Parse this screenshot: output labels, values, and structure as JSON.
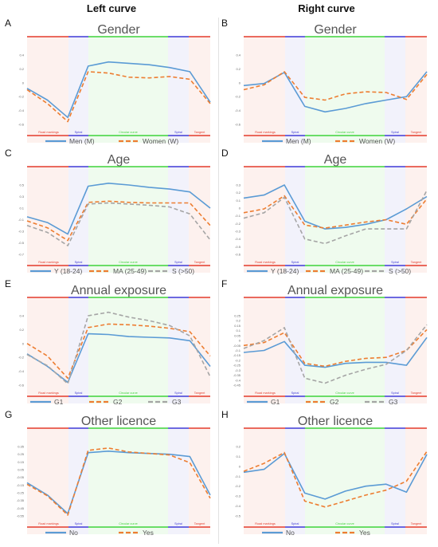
{
  "column_headers": {
    "left": "Left curve",
    "right": "Right curve"
  },
  "region_colors": {
    "road": "#e33b2b",
    "spiral": "#3f3ad6",
    "circular": "#3fd33a",
    "tangent": "#e33b2b"
  },
  "bg_colors": {
    "road": "#fdf1ee",
    "spiral": "#f2f2fb",
    "circular": "#effbee",
    "tangent": "#fdf1ee"
  },
  "chart_data": [
    {
      "panel": "A",
      "type": "line",
      "title": "Gender",
      "regions": [
        "Road markings",
        "Spiral",
        "Circular curve",
        "Spiral",
        "Tangent"
      ],
      "yticks": [
        0.4,
        0.2,
        0,
        -0.2,
        -0.4,
        -0.6
      ],
      "ylim": [
        -0.6,
        0.4
      ],
      "series": [
        {
          "name": "Men (M)",
          "color": "#5b9bd5",
          "dash": "solid",
          "values": [
            -0.08,
            -0.25,
            -0.5,
            0.24,
            0.3,
            0.28,
            0.26,
            0.22,
            0.16,
            -0.28
          ]
        },
        {
          "name": "Women (W)",
          "color": "#ed7d31",
          "dash": "dashed",
          "values": [
            -0.1,
            -0.3,
            -0.56,
            0.16,
            0.14,
            0.08,
            0.07,
            0.09,
            0.05,
            -0.3
          ]
        }
      ]
    },
    {
      "panel": "B",
      "type": "line",
      "title": "Gender",
      "regions": [
        "Road markings",
        "Spiral",
        "Circular curve",
        "Spiral",
        "Tangent"
      ],
      "yticks": [
        0.4,
        0.2,
        0,
        -0.2,
        -0.4,
        -0.6
      ],
      "ylim": [
        -0.6,
        0.4
      ],
      "series": [
        {
          "name": "Men (M)",
          "color": "#5b9bd5",
          "dash": "solid",
          "values": [
            -0.04,
            -0.01,
            0.15,
            -0.34,
            -0.42,
            -0.37,
            -0.3,
            -0.25,
            -0.2,
            0.16
          ]
        },
        {
          "name": "Women (W)",
          "color": "#ed7d31",
          "dash": "dashed",
          "values": [
            -0.1,
            -0.03,
            0.16,
            -0.21,
            -0.25,
            -0.16,
            -0.13,
            -0.14,
            -0.24,
            0.12
          ]
        }
      ]
    },
    {
      "panel": "C",
      "type": "line",
      "title": "Age",
      "regions": [
        "Road markings",
        "Spiral",
        "Circular curve",
        "Spiral",
        "Tangent"
      ],
      "yticks": [
        0.5,
        0.3,
        0.1,
        -0.1,
        -0.3,
        -0.5,
        -0.7
      ],
      "ylim": [
        -0.7,
        0.5
      ],
      "series": [
        {
          "name": "Y (18-24)",
          "color": "#5b9bd5",
          "dash": "solid",
          "values": [
            -0.05,
            -0.15,
            -0.35,
            0.48,
            0.53,
            0.5,
            0.46,
            0.43,
            0.38,
            0.1
          ]
        },
        {
          "name": "MA (25-49)",
          "color": "#ed7d31",
          "dash": "dashed",
          "values": [
            -0.12,
            -0.24,
            -0.46,
            0.2,
            0.22,
            0.2,
            0.19,
            0.19,
            0.19,
            -0.2
          ]
        },
        {
          "name": "S (>50)",
          "color": "#a5a5a5",
          "dash": "dashed",
          "values": [
            -0.2,
            -0.32,
            -0.55,
            0.17,
            0.19,
            0.17,
            0.15,
            0.12,
            0.0,
            -0.45
          ]
        }
      ]
    },
    {
      "panel": "D",
      "type": "line",
      "title": "Age",
      "regions": [
        "Road markings",
        "Spiral",
        "Circular curve",
        "Spiral",
        "Tangent"
      ],
      "yticks": [
        0.3,
        0.2,
        0.1,
        0,
        -0.1,
        -0.2,
        -0.3,
        -0.4,
        -0.5,
        -0.6
      ],
      "ylim": [
        -0.6,
        0.3
      ],
      "series": [
        {
          "name": "Y (18-24)",
          "color": "#5b9bd5",
          "dash": "solid",
          "values": [
            0.13,
            0.17,
            0.3,
            -0.17,
            -0.27,
            -0.25,
            -0.21,
            -0.15,
            -0.01,
            0.15
          ]
        },
        {
          "name": "MA (25-49)",
          "color": "#ed7d31",
          "dash": "dashed",
          "values": [
            -0.06,
            -0.01,
            0.16,
            -0.22,
            -0.26,
            -0.22,
            -0.18,
            -0.15,
            -0.21,
            0.12
          ]
        },
        {
          "name": "S (>50)",
          "color": "#a5a5a5",
          "dash": "dashed",
          "values": [
            -0.13,
            -0.06,
            0.14,
            -0.4,
            -0.46,
            -0.36,
            -0.27,
            -0.27,
            -0.27,
            0.23
          ]
        }
      ]
    },
    {
      "panel": "E",
      "type": "line",
      "title": "Annual exposure",
      "regions": [
        "Road markings",
        "Spiral",
        "Circular curve",
        "Spiral",
        "Tangent"
      ],
      "yticks": [
        0.4,
        0.2,
        0,
        -0.2,
        -0.4,
        -0.6
      ],
      "ylim": [
        -0.6,
        0.4
      ],
      "series": [
        {
          "name": "G1",
          "color": "#5b9bd5",
          "dash": "solid",
          "values": [
            -0.15,
            -0.33,
            -0.56,
            0.14,
            0.13,
            0.1,
            0.09,
            0.08,
            0.04,
            -0.33
          ]
        },
        {
          "name": "G2",
          "color": "#ed7d31",
          "dash": "dashed",
          "values": [
            0.0,
            -0.18,
            -0.5,
            0.23,
            0.28,
            0.27,
            0.25,
            0.22,
            0.17,
            -0.18
          ]
        },
        {
          "name": "G3",
          "color": "#a5a5a5",
          "dash": "dashed",
          "values": [
            -0.16,
            -0.32,
            -0.58,
            0.4,
            0.45,
            0.38,
            0.33,
            0.26,
            0.11,
            -0.48
          ]
        }
      ]
    },
    {
      "panel": "F",
      "type": "line",
      "title": "Annual exposure",
      "regions": [
        "Road markings",
        "Spiral",
        "Circular curve",
        "Spiral",
        "Tangent"
      ],
      "yticks": [
        0.25,
        0.2,
        0.15,
        0.1,
        0.05,
        0,
        -0.05,
        -0.1,
        -0.15,
        -0.2,
        -0.25,
        -0.3,
        -0.35,
        -0.4,
        -0.45
      ],
      "ylim": [
        -0.45,
        0.25
      ],
      "series": [
        {
          "name": "G1",
          "color": "#5b9bd5",
          "dash": "solid",
          "values": [
            -0.12,
            -0.1,
            -0.01,
            -0.25,
            -0.27,
            -0.23,
            -0.22,
            -0.22,
            -0.25,
            0.03
          ]
        },
        {
          "name": "G2",
          "color": "#ed7d31",
          "dash": "dashed",
          "values": [
            -0.05,
            -0.02,
            0.08,
            -0.23,
            -0.26,
            -0.21,
            -0.18,
            -0.17,
            -0.1,
            0.11
          ]
        },
        {
          "name": "G3",
          "color": "#a5a5a5",
          "dash": "dashed",
          "values": [
            -0.08,
            0.0,
            0.13,
            -0.38,
            -0.43,
            -0.35,
            -0.29,
            -0.24,
            -0.1,
            0.16
          ]
        }
      ]
    },
    {
      "panel": "G",
      "type": "line",
      "title": "Other licence",
      "regions": [
        "Road markings",
        "Spiral",
        "Circular curve",
        "Spiral",
        "Tangent"
      ],
      "yticks": [
        0.35,
        0.25,
        0.15,
        0.05,
        -0.05,
        -0.15,
        -0.25,
        -0.35,
        -0.45,
        -0.55
      ],
      "ylim": [
        -0.55,
        0.35
      ],
      "series": [
        {
          "name": "No",
          "color": "#5b9bd5",
          "dash": "solid",
          "values": [
            -0.12,
            -0.28,
            -0.52,
            0.27,
            0.29,
            0.27,
            0.26,
            0.25,
            0.22,
            -0.28
          ]
        },
        {
          "name": "Yes",
          "color": "#ed7d31",
          "dash": "dashed",
          "values": [
            -0.14,
            -0.29,
            -0.54,
            0.3,
            0.33,
            0.28,
            0.26,
            0.24,
            0.14,
            -0.32
          ]
        }
      ]
    },
    {
      "panel": "H",
      "type": "line",
      "title": "Other licence",
      "regions": [
        "Road markings",
        "Spiral",
        "Circular curve",
        "Spiral",
        "Tangent"
      ],
      "yticks": [
        0.2,
        0.1,
        0,
        -0.1,
        -0.2,
        -0.3,
        -0.4,
        -0.5
      ],
      "ylim": [
        -0.5,
        0.2
      ],
      "series": [
        {
          "name": "No",
          "color": "#5b9bd5",
          "dash": "solid",
          "values": [
            -0.06,
            -0.03,
            0.13,
            -0.27,
            -0.33,
            -0.25,
            -0.2,
            -0.18,
            -0.26,
            0.12
          ]
        },
        {
          "name": "Yes",
          "color": "#ed7d31",
          "dash": "dashed",
          "values": [
            -0.05,
            0.03,
            0.14,
            -0.35,
            -0.41,
            -0.35,
            -0.29,
            -0.24,
            -0.15,
            0.15
          ]
        }
      ]
    }
  ]
}
